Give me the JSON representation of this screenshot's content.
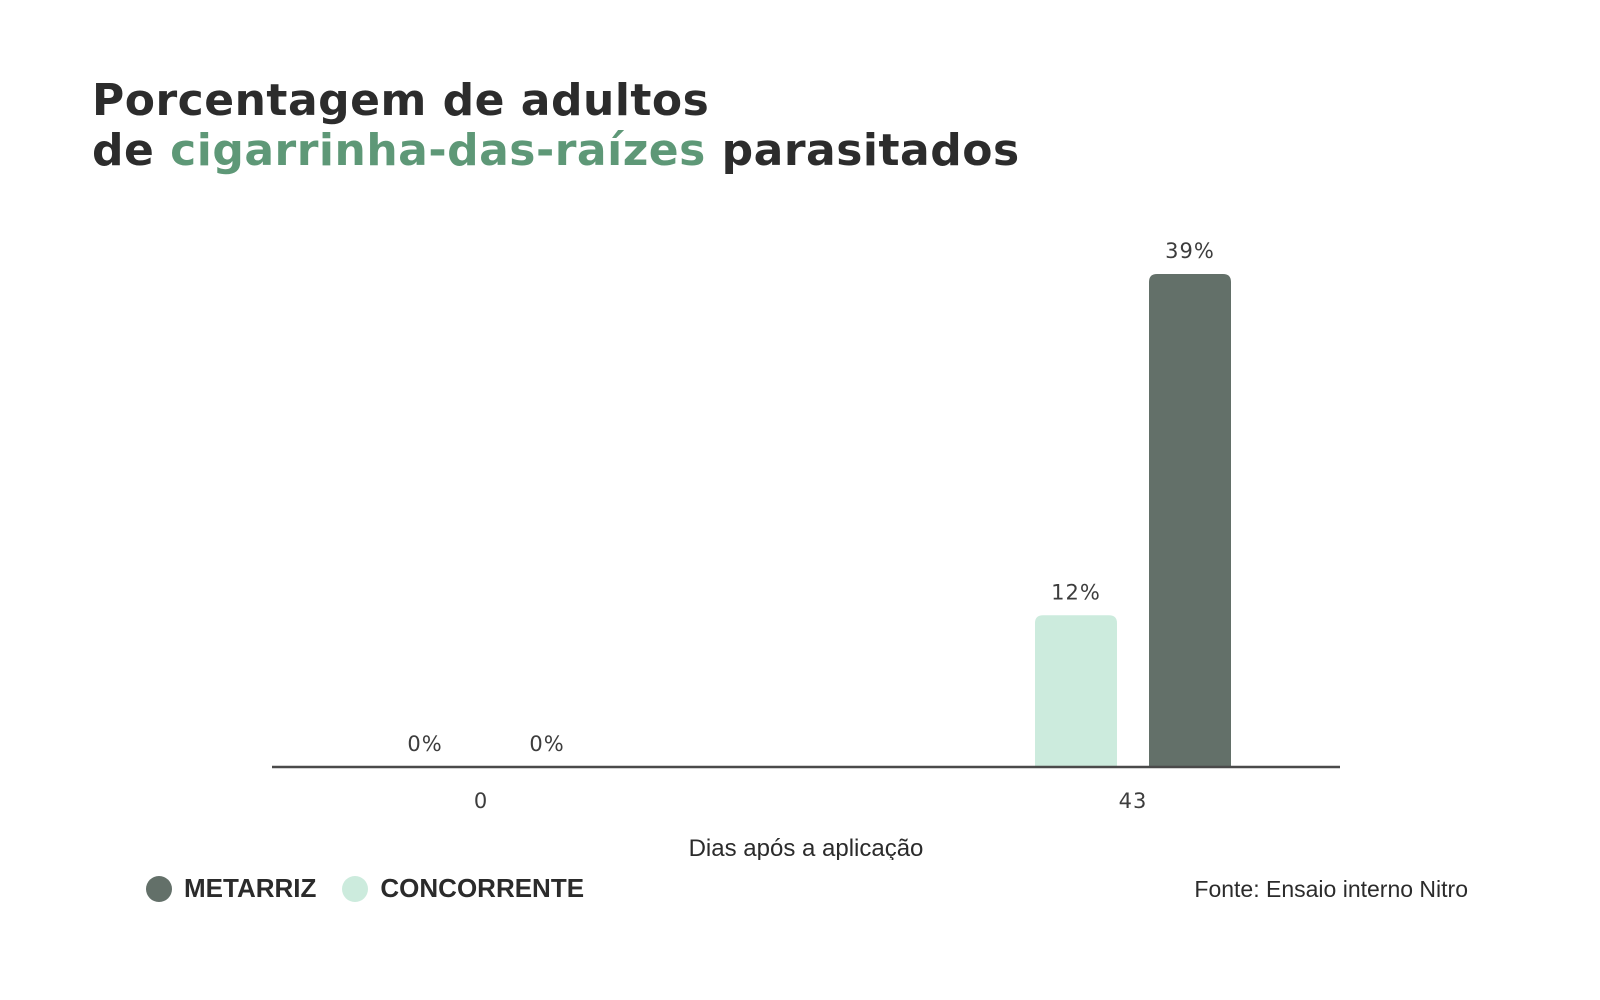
{
  "title": {
    "line1": "Porcentagem de adultos",
    "line2_prefix": "de ",
    "line2_accent": "cigarrinha-das-raízes",
    "line2_suffix": " parasitados"
  },
  "chart_data": {
    "type": "bar",
    "title": "Porcentagem de adultos de cigarrinha-das-raízes parasitados",
    "categories": [
      "0",
      "43"
    ],
    "xlabel": "Dias após a aplicação",
    "ylabel": "",
    "ylim": [
      0,
      39
    ],
    "grid": false,
    "legend_position": "bottom-left",
    "series": [
      {
        "name": "CONCORRENTE",
        "values": [
          0,
          12
        ],
        "labels": [
          "0%",
          "12%"
        ],
        "color": "#ccebdd"
      },
      {
        "name": "METARRIZ",
        "values": [
          0,
          39
        ],
        "labels": [
          "0%",
          "39%"
        ],
        "color": "#637069"
      }
    ]
  },
  "legend": [
    {
      "label": "METARRIZ",
      "color": "#637069"
    },
    {
      "label": "CONCORRENTE",
      "color": "#ccebdd"
    }
  ],
  "source": "Fonte: Ensaio interno Nitro",
  "colors": {
    "accent": "#5e9877",
    "axis": "#4a4a4a",
    "text": "#2b2b2b"
  }
}
